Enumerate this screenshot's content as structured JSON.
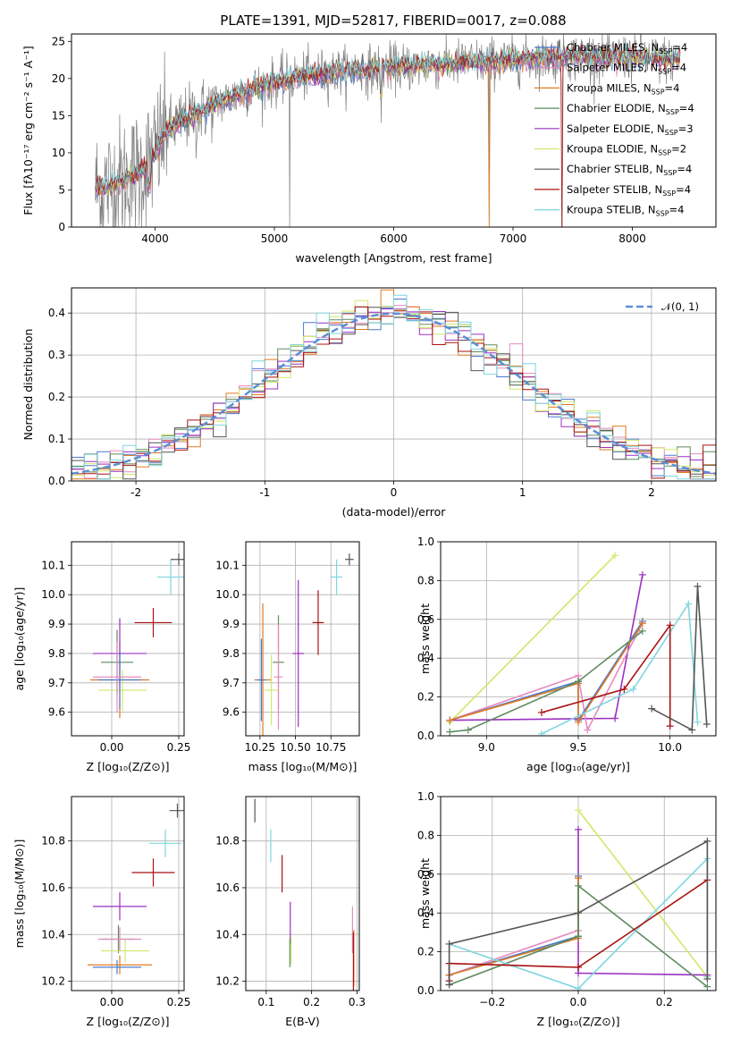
{
  "figure": {
    "title": "PLATE=1391, MJD=52817, FIBERID=0017, z=0.088"
  },
  "chart_data": [
    {
      "type": "line",
      "name": "spectrum",
      "xlabel": "wavelength [Angstrom, rest frame]",
      "ylabel": "Flux [fλ10⁻¹⁷ erg cm⁻² s⁻¹ A⁻¹]",
      "xlim": [
        3300,
        8700
      ],
      "ylim": [
        0,
        26
      ],
      "xticks": [
        4000,
        5000,
        6000,
        7000,
        8000
      ],
      "yticks": [
        0,
        5,
        10,
        15,
        20,
        25
      ],
      "grid": false,
      "legend_position": "top-right",
      "legend": [
        {
          "label": "Chabrier MILES, N",
          "sub": "SSP",
          "suffix": "=4",
          "color": "#4a7bd0"
        },
        {
          "label": "Salpeter MILES, N",
          "sub": "SSP",
          "suffix": "=4",
          "color": "#e58bc0"
        },
        {
          "label": "Kroupa MILES, N",
          "sub": "SSP",
          "suffix": "=4",
          "color": "#e07b22"
        },
        {
          "label": "Chabrier ELODIE, N",
          "sub": "SSP",
          "suffix": "=4",
          "color": "#5e8a5e"
        },
        {
          "label": "Salpeter ELODIE, N",
          "sub": "SSP",
          "suffix": "=3",
          "color": "#9b30c0"
        },
        {
          "label": "Kroupa ELODIE, N",
          "sub": "SSP",
          "suffix": "=2",
          "color": "#cfe86a"
        },
        {
          "label": "Chabrier STELIB, N",
          "sub": "SSP",
          "suffix": "=4",
          "color": "#555555"
        },
        {
          "label": "Salpeter STELIB, N",
          "sub": "SSP",
          "suffix": "=4",
          "color": "#aa1111"
        },
        {
          "label": "Kroupa STELIB, N",
          "sub": "SSP",
          "suffix": "=4",
          "color": "#7fd6e0"
        }
      ],
      "continuum": [
        [
          3500,
          5
        ],
        [
          3700,
          6
        ],
        [
          3900,
          7.5
        ],
        [
          4000,
          10
        ],
        [
          4100,
          13
        ],
        [
          4300,
          15
        ],
        [
          4500,
          16.5
        ],
        [
          4800,
          18.5
        ],
        [
          5000,
          19.5
        ],
        [
          5300,
          20.5
        ],
        [
          5600,
          21
        ],
        [
          6000,
          21.5
        ],
        [
          6500,
          22
        ],
        [
          7000,
          22.5
        ],
        [
          7500,
          23
        ],
        [
          8000,
          22.8
        ],
        [
          8400,
          22.5
        ]
      ],
      "data_color": "#808080"
    },
    {
      "type": "histogram",
      "name": "residuals",
      "xlabel": "(data-model)/error",
      "ylabel": "Normed distribution",
      "xlim": [
        -2.5,
        2.5
      ],
      "ylim": [
        0,
        0.46
      ],
      "xticks": [
        -2,
        -1,
        0,
        1,
        2
      ],
      "yticks": [
        0.0,
        0.1,
        0.2,
        0.3,
        0.4
      ],
      "grid": true,
      "legend_position": "top-right",
      "reference_curve": {
        "label": "𝒩(0, 1)",
        "mean": 0,
        "sigma": 1,
        "color": "#5b8fd6"
      },
      "bin_width": 0.1
    },
    {
      "type": "scatter",
      "name": "age-vs-Z",
      "xlabel": "Z [log₁₀(Z/Z⊙)]",
      "ylabel": "age  [log₁₀(age/yr)]",
      "xlim": [
        -0.15,
        0.27
      ],
      "ylim": [
        9.52,
        10.18
      ],
      "xticks": [
        0.0,
        0.25
      ],
      "xticklabels": [
        "0.00",
        "0.25"
      ],
      "yticks": [
        9.6,
        9.7,
        9.8,
        9.9,
        10.0,
        10.1
      ],
      "grid": true,
      "points": [
        {
          "color": "#7fd6e0",
          "x": 0.22,
          "y": 10.06,
          "xerr": 0.05,
          "yerr": 0.06
        },
        {
          "color": "#555555",
          "x": 0.25,
          "y": 10.12,
          "xerr": 0.03,
          "yerr": 0.02
        },
        {
          "color": "#aa1111",
          "x": 0.155,
          "y": 9.905,
          "xerr": 0.07,
          "yerr": 0.05
        },
        {
          "color": "#e07b22",
          "x": 0.03,
          "y": 9.71,
          "xerr": 0.11,
          "yerr": 0.13
        },
        {
          "color": "#9b30c0",
          "x": 0.03,
          "y": 9.8,
          "xerr": 0.1,
          "yerr": 0.12
        },
        {
          "color": "#5e8a5e",
          "x": 0.02,
          "y": 9.77,
          "xerr": 0.06,
          "yerr": 0.11
        },
        {
          "color": "#cfe86a",
          "x": 0.04,
          "y": 9.675,
          "xerr": 0.09,
          "yerr": 0.07
        },
        {
          "color": "#4a7bd0",
          "x": 0.03,
          "y": 9.71,
          "xerr": 0.08,
          "yerr": 0.1
        },
        {
          "color": "#e58bc0",
          "x": 0.02,
          "y": 9.72,
          "xerr": 0.09,
          "yerr": 0.12
        }
      ]
    },
    {
      "type": "scatter",
      "name": "age-vs-mass",
      "xlabel": "mass [log₁₀(M/M⊙)]",
      "ylabel": "",
      "xlim": [
        10.15,
        10.95
      ],
      "ylim": [
        9.52,
        10.18
      ],
      "xticks": [
        10.25,
        10.5,
        10.75
      ],
      "xticklabels": [
        "10.25",
        "10.50",
        "10.75"
      ],
      "yticks": [
        9.6,
        9.7,
        9.8,
        9.9,
        10.0,
        10.1
      ],
      "grid": true,
      "points": [
        {
          "color": "#7fd6e0",
          "x": 10.79,
          "y": 10.06,
          "xerr": 0.04,
          "yerr": 0.06
        },
        {
          "color": "#555555",
          "x": 10.88,
          "y": 10.12,
          "xerr": 0.03,
          "yerr": 0.02
        },
        {
          "color": "#aa1111",
          "x": 10.66,
          "y": 9.905,
          "xerr": 0.04,
          "yerr": 0.11
        },
        {
          "color": "#e07b22",
          "x": 10.27,
          "y": 9.71,
          "xerr": 0.06,
          "yerr": 0.26
        },
        {
          "color": "#9b30c0",
          "x": 10.52,
          "y": 9.8,
          "xerr": 0.04,
          "yerr": 0.25
        },
        {
          "color": "#5e8a5e",
          "x": 10.38,
          "y": 9.77,
          "xerr": 0.04,
          "yerr": 0.16
        },
        {
          "color": "#cfe86a",
          "x": 10.33,
          "y": 9.675,
          "xerr": 0.05,
          "yerr": 0.12
        },
        {
          "color": "#4a7bd0",
          "x": 10.26,
          "y": 9.71,
          "xerr": 0.03,
          "yerr": 0.14
        },
        {
          "color": "#e58bc0",
          "x": 10.38,
          "y": 9.72,
          "xerr": 0.03,
          "yerr": 0.18
        }
      ]
    },
    {
      "type": "line",
      "name": "mass-weight-vs-age",
      "xlabel": "age  [log₁₀(age/yr)]",
      "ylabel": "mass weight",
      "xlim": [
        8.75,
        10.25
      ],
      "ylim": [
        0,
        1.0
      ],
      "xticks": [
        9.0,
        9.5,
        10.0
      ],
      "xticklabels": [
        "9.0",
        "9.5",
        "10.0"
      ],
      "yticks": [
        0.0,
        0.2,
        0.4,
        0.6,
        0.8,
        1.0
      ],
      "grid": true,
      "series": [
        {
          "color": "#cfe86a",
          "x": [
            8.8,
            9.7
          ],
          "y": [
            0.07,
            0.93
          ]
        },
        {
          "color": "#9b30c0",
          "x": [
            8.8,
            9.7,
            9.85
          ],
          "y": [
            0.08,
            0.09,
            0.83
          ]
        },
        {
          "color": "#e58bc0",
          "x": [
            8.8,
            9.5,
            9.55,
            9.85
          ],
          "y": [
            0.08,
            0.31,
            0.03,
            0.58
          ]
        },
        {
          "color": "#4a7bd0",
          "x": [
            8.8,
            9.5,
            9.5,
            9.85
          ],
          "y": [
            0.08,
            0.28,
            0.08,
            0.59
          ]
        },
        {
          "color": "#e07b22",
          "x": [
            8.8,
            9.5,
            9.5,
            9.85
          ],
          "y": [
            0.08,
            0.27,
            0.07,
            0.58
          ]
        },
        {
          "color": "#5e8a5e",
          "x": [
            8.8,
            8.9,
            9.5,
            9.85
          ],
          "y": [
            0.02,
            0.03,
            0.28,
            0.54
          ]
        },
        {
          "color": "#7fd6e0",
          "x": [
            9.3,
            9.8,
            10.1,
            10.15
          ],
          "y": [
            0.01,
            0.24,
            0.68,
            0.07
          ]
        },
        {
          "color": "#aa1111",
          "x": [
            9.3,
            9.75,
            10.0,
            10.0
          ],
          "y": [
            0.12,
            0.24,
            0.57,
            0.05
          ]
        },
        {
          "color": "#555555",
          "x": [
            9.9,
            10.12,
            10.15,
            10.2
          ],
          "y": [
            0.14,
            0.03,
            0.77,
            0.06
          ]
        }
      ]
    },
    {
      "type": "scatter",
      "name": "mass-vs-Z",
      "xlabel": "Z [log₁₀(Z/Z⊙)]",
      "ylabel": "mass [log₁₀(M/M⊙)]",
      "xlim": [
        -0.15,
        0.27
      ],
      "ylim": [
        10.16,
        10.99
      ],
      "xticks": [
        0.0,
        0.25
      ],
      "xticklabels": [
        "0.00",
        "0.25"
      ],
      "yticks": [
        10.2,
        10.4,
        10.6,
        10.8
      ],
      "grid": true,
      "points": [
        {
          "color": "#7fd6e0",
          "x": 0.2,
          "y": 10.79,
          "xerr": 0.06,
          "yerr": 0.06
        },
        {
          "color": "#555555",
          "x": 0.245,
          "y": 10.93,
          "xerr": 0.03,
          "yerr": 0.03
        },
        {
          "color": "#aa1111",
          "x": 0.155,
          "y": 10.665,
          "xerr": 0.08,
          "yerr": 0.06
        },
        {
          "color": "#e07b22",
          "x": 0.03,
          "y": 10.27,
          "xerr": 0.12,
          "yerr": 0.04
        },
        {
          "color": "#9b30c0",
          "x": 0.03,
          "y": 10.52,
          "xerr": 0.1,
          "yerr": 0.06
        },
        {
          "color": "#5e8a5e",
          "x": 0.025,
          "y": 10.38,
          "xerr": 0.06,
          "yerr": 0.06
        },
        {
          "color": "#cfe86a",
          "x": 0.05,
          "y": 10.33,
          "xerr": 0.09,
          "yerr": 0.05
        },
        {
          "color": "#4a7bd0",
          "x": 0.02,
          "y": 10.26,
          "xerr": 0.09,
          "yerr": 0.03
        },
        {
          "color": "#e58bc0",
          "x": 0.03,
          "y": 10.38,
          "xerr": 0.08,
          "yerr": 0.05
        }
      ]
    },
    {
      "type": "scatter",
      "name": "mass-vs-ebv",
      "xlabel": "E(B-V)",
      "ylabel": "",
      "xlim": [
        0.055,
        0.305
      ],
      "ylim": [
        10.16,
        10.99
      ],
      "xticks": [
        0.1,
        0.2,
        0.3
      ],
      "xticklabels": [
        "0.1",
        "0.2",
        "0.3"
      ],
      "yticks": [
        10.2,
        10.4,
        10.6,
        10.8
      ],
      "grid": true,
      "points": [
        {
          "color": "#555555",
          "x": 0.075,
          "y": 10.93,
          "xerr": 0,
          "yerr": 0.05
        },
        {
          "color": "#7fd6e0",
          "x": 0.11,
          "y": 10.78,
          "xerr": 0,
          "yerr": 0.07
        },
        {
          "color": "#aa1111",
          "x": 0.135,
          "y": 10.66,
          "xerr": 0,
          "yerr": 0.08
        },
        {
          "color": "#9b30c0",
          "x": 0.153,
          "y": 10.45,
          "xerr": 0,
          "yerr": 0.09
        },
        {
          "color": "#cfe86a",
          "x": 0.155,
          "y": 10.33,
          "xerr": 0,
          "yerr": 0.06
        },
        {
          "color": "#5e8a5e",
          "x": 0.152,
          "y": 10.32,
          "xerr": 0,
          "yerr": 0.06
        },
        {
          "color": "#e58bc0",
          "x": 0.29,
          "y": 10.42,
          "xerr": 0,
          "yerr": 0.1
        },
        {
          "color": "#e07b22",
          "x": 0.293,
          "y": 10.3,
          "xerr": 0,
          "yerr": 0.12
        },
        {
          "color": "#aa1111",
          "x": 0.292,
          "y": 10.28,
          "xerr": 0,
          "yerr": 0.13
        }
      ]
    },
    {
      "type": "line",
      "name": "mass-weight-vs-Z",
      "xlabel": "Z [log₁₀(Z/Z⊙)]",
      "ylabel": "mass weight",
      "xlim": [
        -0.32,
        0.32
      ],
      "ylim": [
        0,
        1.0
      ],
      "xticks": [
        -0.2,
        0.0,
        0.2
      ],
      "xticklabels": [
        "−0.2",
        "0.0",
        "0.2"
      ],
      "yticks": [
        0.0,
        0.2,
        0.4,
        0.6,
        0.8,
        1.0
      ],
      "grid": true,
      "series": [
        {
          "color": "#cfe86a",
          "x": [
            0.0,
            0.3
          ],
          "y": [
            0.93,
            0.07
          ]
        },
        {
          "color": "#9b30c0",
          "x": [
            0.0,
            0.0,
            0.3
          ],
          "y": [
            0.83,
            0.09,
            0.08
          ]
        },
        {
          "color": "#e58bc0",
          "x": [
            -0.3,
            0.0,
            0.0
          ],
          "y": [
            0.08,
            0.31,
            0.58
          ]
        },
        {
          "color": "#4a7bd0",
          "x": [
            -0.3,
            0.0,
            0.0
          ],
          "y": [
            0.08,
            0.28,
            0.59
          ]
        },
        {
          "color": "#e07b22",
          "x": [
            -0.3,
            0.0,
            0.0
          ],
          "y": [
            0.08,
            0.27,
            0.58
          ]
        },
        {
          "color": "#5e8a5e",
          "x": [
            -0.3,
            0.0,
            0.0,
            0.3
          ],
          "y": [
            0.03,
            0.28,
            0.54,
            0.02
          ]
        },
        {
          "color": "#7fd6e0",
          "x": [
            -0.3,
            0.0,
            0.3,
            0.3
          ],
          "y": [
            0.24,
            0.01,
            0.68,
            0.07
          ]
        },
        {
          "color": "#aa1111",
          "x": [
            -0.3,
            -0.3,
            0.0,
            0.3
          ],
          "y": [
            0.05,
            0.14,
            0.12,
            0.57
          ]
        },
        {
          "color": "#555555",
          "x": [
            -0.3,
            -0.3,
            0.0,
            0.3,
            0.3
          ],
          "y": [
            0.03,
            0.24,
            0.4,
            0.77,
            0.06
          ]
        }
      ]
    }
  ]
}
